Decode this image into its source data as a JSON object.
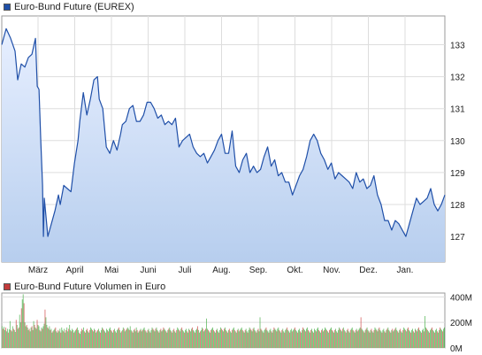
{
  "colors": {
    "price_line": "#1f4fa8",
    "price_fill_top": "#e7efff",
    "price_fill_bottom": "#b7ceee",
    "price_legend": "#1f4fa8",
    "volume_legend": "#c23b3b",
    "volume_up": "#4bb04b",
    "volume_down": "#d24b4b",
    "grid": "#dddddd",
    "axis": "#999999"
  },
  "price_legend": "Euro-Bund Future (EUREX)",
  "volume_legend": "Euro-Bund Future Volumen in Euro",
  "chart_data": [
    {
      "type": "area",
      "series_name": "Euro-Bund Future (EUREX)",
      "ylim": [
        126.2,
        133.9
      ],
      "y_ticks": [
        127,
        128,
        129,
        130,
        131,
        132,
        133
      ],
      "y_tick_labels": [
        "127",
        "128",
        "129",
        "130",
        "131",
        "132",
        "133"
      ],
      "x_tick_labels": [
        "März",
        "April",
        "Mai",
        "Juni",
        "Juli",
        "Aug.",
        "Sep.",
        "Okt.",
        "Nov.",
        "Dez.",
        "Jan."
      ],
      "x": [
        0,
        5,
        10,
        15,
        18,
        22,
        26,
        30,
        34,
        38,
        40,
        42,
        44,
        46,
        47,
        48,
        52,
        56,
        60,
        64,
        66,
        70,
        74,
        78,
        82,
        86,
        88,
        92,
        96,
        100,
        104,
        108,
        110,
        114,
        118,
        122,
        126,
        130,
        134,
        136,
        140,
        144,
        148,
        152,
        156,
        160,
        164,
        168,
        172,
        176,
        180,
        184,
        188,
        192,
        196,
        200,
        204,
        208,
        212,
        216,
        220,
        224,
        228,
        232,
        236,
        240,
        244,
        248,
        252,
        256,
        260,
        264,
        268,
        272,
        276,
        280,
        284,
        288,
        292,
        296,
        300,
        304,
        308,
        312,
        316,
        320,
        324,
        328,
        332,
        336,
        340,
        344,
        348,
        352,
        356,
        360,
        364,
        368,
        372,
        376,
        380,
        384,
        388,
        392,
        396,
        400,
        404,
        408,
        412,
        416,
        420,
        424,
        428,
        432,
        436,
        440,
        444,
        448,
        452,
        456,
        460,
        464,
        468,
        472,
        476,
        480,
        484,
        488,
        492,
        496,
        500
      ],
      "y": [
        133.0,
        133.5,
        133.2,
        132.8,
        131.9,
        132.4,
        132.3,
        132.6,
        132.7,
        133.2,
        131.7,
        131.6,
        130.0,
        128.6,
        127.0,
        128.2,
        127.0,
        127.4,
        127.8,
        128.3,
        128.0,
        128.6,
        128.5,
        128.4,
        129.3,
        130.0,
        130.6,
        131.5,
        130.8,
        131.3,
        131.9,
        132.0,
        131.3,
        131.0,
        129.8,
        129.6,
        130.0,
        129.7,
        130.2,
        130.5,
        130.6,
        131.0,
        131.1,
        130.6,
        130.6,
        130.8,
        131.2,
        131.2,
        131.0,
        130.7,
        130.8,
        130.5,
        130.6,
        130.5,
        130.7,
        129.8,
        130.0,
        130.1,
        130.2,
        129.8,
        129.6,
        129.5,
        129.6,
        129.3,
        129.5,
        129.7,
        130.0,
        130.2,
        129.6,
        129.6,
        130.3,
        129.2,
        129.0,
        129.4,
        129.6,
        129.0,
        129.2,
        129.0,
        129.1,
        129.5,
        129.8,
        129.2,
        129.4,
        128.9,
        129.0,
        128.7,
        128.7,
        128.3,
        128.6,
        128.9,
        129.1,
        129.5,
        130.0,
        130.2,
        130.0,
        129.6,
        129.4,
        129.1,
        129.3,
        128.8,
        129.0,
        128.9,
        128.8,
        128.7,
        128.5,
        129.0,
        128.7,
        128.8,
        128.5,
        128.6,
        128.9,
        128.3,
        128.0,
        127.5,
        127.5,
        127.2,
        127.5,
        127.4,
        127.2,
        127.0,
        127.4,
        127.8,
        128.2,
        128.0,
        128.1,
        128.2,
        128.5,
        128.0,
        127.8,
        128.0,
        128.3
      ]
    },
    {
      "type": "bar",
      "series_name": "Euro-Bund Future Volumen in Euro",
      "ylim": [
        0,
        430
      ],
      "y_ticks": [
        0,
        200,
        400
      ],
      "y_tick_labels": [
        "0M",
        "200M",
        "400M"
      ],
      "values": [
        170,
        150,
        165,
        140,
        160,
        130,
        150,
        120,
        145,
        210,
        140,
        130,
        170,
        150,
        140,
        125,
        220,
        180,
        150,
        160,
        260,
        200,
        310,
        380,
        420,
        350,
        200,
        170,
        180,
        160,
        140,
        150,
        130,
        160,
        170,
        140,
        210,
        180,
        160,
        150,
        220,
        180,
        170,
        140,
        130,
        160,
        150,
        170,
        190,
        300,
        240,
        180,
        160,
        150,
        170,
        140,
        150,
        120,
        130,
        140,
        150,
        160,
        130,
        120,
        140,
        130,
        150,
        120,
        160,
        140,
        130,
        150,
        120,
        140,
        160,
        130,
        150,
        180,
        140,
        130,
        150,
        140,
        120,
        130,
        140,
        150,
        160,
        140,
        120,
        110,
        130,
        150,
        140,
        160,
        130,
        120,
        140,
        150,
        130,
        120,
        140,
        160,
        150,
        140,
        130,
        150,
        140,
        120,
        130,
        140,
        150,
        130,
        120,
        140,
        160,
        150,
        140,
        130,
        120,
        150,
        140,
        130,
        150,
        160,
        140,
        130,
        120,
        140,
        150,
        130,
        120,
        140,
        150,
        160,
        140,
        120,
        130,
        140,
        160,
        150,
        130,
        140,
        150,
        160,
        150,
        140,
        170,
        140,
        130,
        120,
        140,
        150,
        130,
        160,
        140,
        120,
        130,
        140,
        150,
        130,
        140,
        150,
        160,
        140,
        130,
        120,
        140,
        150,
        130,
        120,
        140,
        160,
        150,
        140,
        130,
        150,
        160,
        140,
        130,
        120,
        140,
        150,
        130,
        140,
        160,
        150,
        140,
        130,
        120,
        140,
        150,
        160,
        140,
        130,
        120,
        140,
        150,
        130,
        120,
        140,
        160,
        150,
        140,
        130,
        150,
        160,
        140,
        130,
        120,
        140,
        150,
        130,
        120,
        150,
        140,
        130,
        150,
        160,
        140,
        130,
        120,
        140,
        150,
        170,
        140,
        120,
        130,
        140,
        160,
        150,
        130,
        140,
        150,
        230,
        150,
        140,
        130,
        120,
        140,
        150,
        160,
        140,
        130,
        120,
        140,
        150,
        130,
        120,
        140,
        160,
        150,
        140,
        130,
        150,
        160,
        140,
        130,
        120,
        140,
        150,
        130,
        120,
        140,
        150,
        160,
        140,
        130,
        120,
        140,
        150,
        130,
        140,
        150,
        160,
        140,
        130,
        120,
        140,
        150,
        130,
        120,
        140,
        160,
        150,
        140,
        130,
        150,
        160,
        140,
        130,
        120,
        140,
        150,
        130,
        240,
        150,
        140,
        130,
        120,
        140,
        150,
        160,
        140,
        130,
        120,
        140,
        150,
        130,
        120,
        140,
        160,
        150,
        140,
        130,
        150,
        160,
        140,
        130,
        120,
        140,
        150,
        130,
        120,
        140,
        150,
        160,
        140,
        130,
        120,
        140,
        150,
        130,
        140,
        150,
        160,
        140,
        130,
        120,
        140,
        150,
        130,
        120,
        140,
        160,
        150,
        140,
        130,
        150,
        160,
        140,
        130,
        120,
        140,
        150,
        130,
        120,
        150,
        140,
        130,
        150,
        160,
        140,
        130,
        120,
        140,
        150,
        130,
        140,
        160,
        150,
        140,
        130,
        120,
        140,
        150,
        160,
        140,
        130,
        120,
        140,
        150,
        130,
        120,
        140,
        160,
        150,
        140,
        130,
        150,
        160,
        140,
        130,
        120,
        140,
        150,
        130,
        120,
        140,
        150,
        160,
        140,
        130,
        120,
        140,
        150,
        130,
        140,
        150,
        160,
        240,
        150,
        140,
        130,
        120,
        140,
        150,
        160,
        140,
        130,
        120,
        140,
        150,
        130,
        120,
        140,
        160,
        150,
        140,
        130,
        150,
        160,
        140,
        130,
        120,
        140,
        150,
        130,
        120,
        140,
        150,
        160,
        140,
        130,
        120,
        140,
        150,
        130,
        140,
        150,
        160,
        140,
        130,
        120,
        140,
        150,
        130,
        120,
        140,
        160,
        150,
        140,
        130,
        150,
        160,
        140,
        130,
        120,
        140,
        150,
        130,
        120,
        150,
        140,
        130,
        150,
        160,
        140,
        130,
        120,
        140,
        150,
        130,
        250,
        160,
        150,
        140,
        130,
        120,
        140,
        150,
        160,
        140,
        130,
        120,
        140,
        150,
        130,
        120,
        140,
        160,
        150,
        140,
        130,
        150,
        160
      ]
    }
  ]
}
